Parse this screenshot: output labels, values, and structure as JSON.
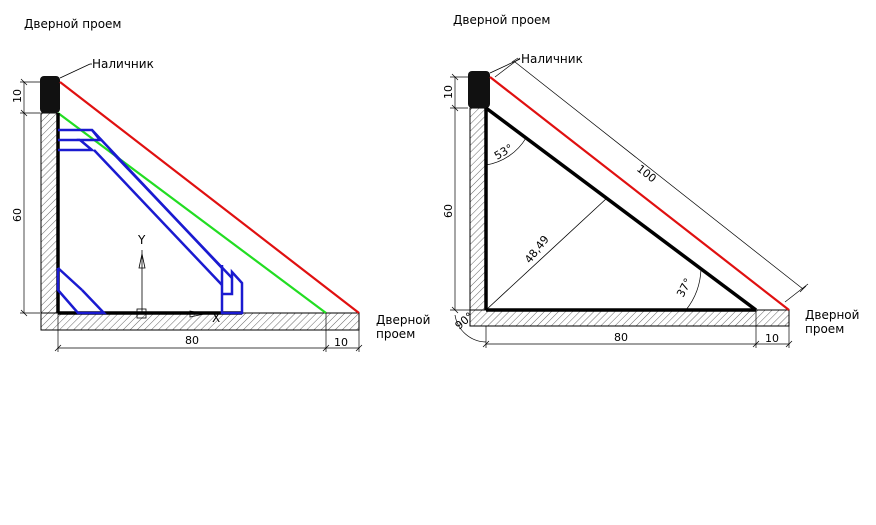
{
  "left_drawing": {
    "label_top": "Дверной проем",
    "label_trim": "Наличник",
    "label_right": "Дверной",
    "label_right2": "проем",
    "dim_10_top": "10",
    "dim_60": "60",
    "dim_80": "80",
    "dim_10_bottom": "10",
    "axis_y": "Y",
    "axis_x": "X",
    "colors": {
      "red": "#e01010",
      "green": "#22dd22",
      "blue": "#1a1ad0",
      "black": "#000000"
    }
  },
  "right_drawing": {
    "label_top": "Дверной проем",
    "label_trim": "Наличник",
    "label_right": "Дверной",
    "label_right2": "проем",
    "dim_10_top": "10",
    "dim_60": "60",
    "dim_80": "80",
    "dim_10_bottom": "10",
    "dim_100": "100",
    "dim_48": "48,49",
    "angle_53": "53°",
    "angle_37": "37°",
    "angle_90": "90°"
  }
}
